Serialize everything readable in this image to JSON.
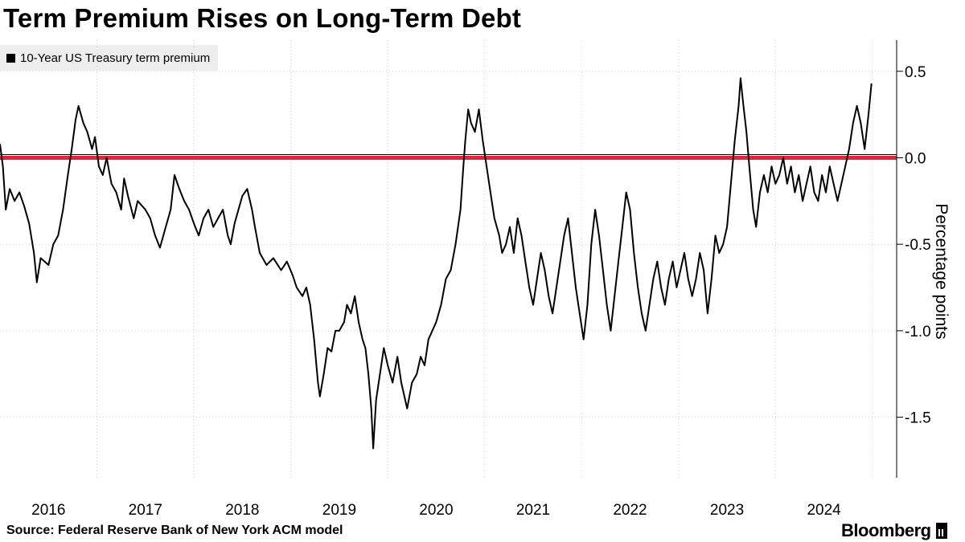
{
  "chart_data": {
    "type": "line",
    "title": "Term Premium Rises on Long-Term Debt",
    "legend": [
      "10-Year US Treasury term premium"
    ],
    "ylabel": "Percentage points",
    "xlabel": "",
    "ylim": [
      -1.85,
      0.68
    ],
    "xlim": [
      2015.5,
      2024.75
    ],
    "x_ticks": [
      2016,
      2017,
      2018,
      2019,
      2020,
      2021,
      2022,
      2023,
      2024
    ],
    "y_ticks": [
      0.5,
      0.0,
      -0.5,
      -1.0,
      -1.5
    ],
    "y_tick_labels": [
      "0.5",
      "0.0",
      "-0.5",
      "-1.0",
      "-1.5"
    ],
    "reference_line": {
      "y": 0,
      "color": "#e5243b"
    },
    "series": [
      {
        "name": "10-Year US Treasury term premium",
        "color": "#000000",
        "points": [
          [
            2015.5,
            0.08
          ],
          [
            2015.53,
            -0.05
          ],
          [
            2015.56,
            -0.3
          ],
          [
            2015.6,
            -0.18
          ],
          [
            2015.65,
            -0.25
          ],
          [
            2015.7,
            -0.2
          ],
          [
            2015.75,
            -0.28
          ],
          [
            2015.8,
            -0.38
          ],
          [
            2015.85,
            -0.55
          ],
          [
            2015.88,
            -0.72
          ],
          [
            2015.92,
            -0.58
          ],
          [
            2016.0,
            -0.62
          ],
          [
            2016.05,
            -0.5
          ],
          [
            2016.1,
            -0.45
          ],
          [
            2016.15,
            -0.3
          ],
          [
            2016.2,
            -0.1
          ],
          [
            2016.24,
            0.05
          ],
          [
            2016.28,
            0.22
          ],
          [
            2016.31,
            0.3
          ],
          [
            2016.36,
            0.2
          ],
          [
            2016.4,
            0.15
          ],
          [
            2016.45,
            0.05
          ],
          [
            2016.48,
            0.12
          ],
          [
            2016.52,
            -0.05
          ],
          [
            2016.56,
            -0.1
          ],
          [
            2016.6,
            0.0
          ],
          [
            2016.65,
            -0.15
          ],
          [
            2016.7,
            -0.2
          ],
          [
            2016.75,
            -0.3
          ],
          [
            2016.78,
            -0.12
          ],
          [
            2016.82,
            -0.22
          ],
          [
            2016.88,
            -0.35
          ],
          [
            2016.92,
            -0.25
          ],
          [
            2017.0,
            -0.3
          ],
          [
            2017.05,
            -0.35
          ],
          [
            2017.1,
            -0.45
          ],
          [
            2017.15,
            -0.52
          ],
          [
            2017.2,
            -0.42
          ],
          [
            2017.26,
            -0.3
          ],
          [
            2017.3,
            -0.1
          ],
          [
            2017.35,
            -0.18
          ],
          [
            2017.4,
            -0.25
          ],
          [
            2017.45,
            -0.3
          ],
          [
            2017.5,
            -0.38
          ],
          [
            2017.55,
            -0.45
          ],
          [
            2017.6,
            -0.35
          ],
          [
            2017.65,
            -0.3
          ],
          [
            2017.7,
            -0.4
          ],
          [
            2017.75,
            -0.35
          ],
          [
            2017.8,
            -0.3
          ],
          [
            2017.85,
            -0.45
          ],
          [
            2017.88,
            -0.5
          ],
          [
            2017.92,
            -0.38
          ],
          [
            2017.96,
            -0.3
          ],
          [
            2018.0,
            -0.22
          ],
          [
            2018.05,
            -0.18
          ],
          [
            2018.1,
            -0.3
          ],
          [
            2018.13,
            -0.4
          ],
          [
            2018.18,
            -0.55
          ],
          [
            2018.25,
            -0.62
          ],
          [
            2018.32,
            -0.58
          ],
          [
            2018.4,
            -0.65
          ],
          [
            2018.46,
            -0.6
          ],
          [
            2018.52,
            -0.68
          ],
          [
            2018.56,
            -0.75
          ],
          [
            2018.62,
            -0.8
          ],
          [
            2018.66,
            -0.75
          ],
          [
            2018.7,
            -0.85
          ],
          [
            2018.74,
            -1.05
          ],
          [
            2018.78,
            -1.3
          ],
          [
            2018.8,
            -1.38
          ],
          [
            2018.84,
            -1.25
          ],
          [
            2018.88,
            -1.1
          ],
          [
            2018.92,
            -1.12
          ],
          [
            2018.96,
            -1.0
          ],
          [
            2019.0,
            -1.0
          ],
          [
            2019.05,
            -0.95
          ],
          [
            2019.08,
            -0.85
          ],
          [
            2019.12,
            -0.9
          ],
          [
            2019.16,
            -0.8
          ],
          [
            2019.2,
            -0.95
          ],
          [
            2019.24,
            -1.05
          ],
          [
            2019.27,
            -1.1
          ],
          [
            2019.3,
            -1.25
          ],
          [
            2019.33,
            -1.45
          ],
          [
            2019.35,
            -1.68
          ],
          [
            2019.38,
            -1.4
          ],
          [
            2019.42,
            -1.25
          ],
          [
            2019.46,
            -1.1
          ],
          [
            2019.5,
            -1.2
          ],
          [
            2019.55,
            -1.3
          ],
          [
            2019.6,
            -1.15
          ],
          [
            2019.64,
            -1.3
          ],
          [
            2019.68,
            -1.4
          ],
          [
            2019.7,
            -1.45
          ],
          [
            2019.75,
            -1.3
          ],
          [
            2019.8,
            -1.25
          ],
          [
            2019.84,
            -1.15
          ],
          [
            2019.88,
            -1.2
          ],
          [
            2019.92,
            -1.05
          ],
          [
            2019.96,
            -1.0
          ],
          [
            2020.0,
            -0.95
          ],
          [
            2020.05,
            -0.85
          ],
          [
            2020.1,
            -0.7
          ],
          [
            2020.15,
            -0.65
          ],
          [
            2020.2,
            -0.5
          ],
          [
            2020.25,
            -0.3
          ],
          [
            2020.28,
            -0.05
          ],
          [
            2020.3,
            0.1
          ],
          [
            2020.33,
            0.28
          ],
          [
            2020.36,
            0.2
          ],
          [
            2020.4,
            0.15
          ],
          [
            2020.44,
            0.28
          ],
          [
            2020.48,
            0.1
          ],
          [
            2020.52,
            -0.05
          ],
          [
            2020.56,
            -0.2
          ],
          [
            2020.6,
            -0.35
          ],
          [
            2020.65,
            -0.45
          ],
          [
            2020.68,
            -0.55
          ],
          [
            2020.72,
            -0.5
          ],
          [
            2020.76,
            -0.4
          ],
          [
            2020.8,
            -0.55
          ],
          [
            2020.84,
            -0.35
          ],
          [
            2020.88,
            -0.45
          ],
          [
            2020.92,
            -0.6
          ],
          [
            2020.96,
            -0.75
          ],
          [
            2021.0,
            -0.85
          ],
          [
            2021.04,
            -0.7
          ],
          [
            2021.08,
            -0.55
          ],
          [
            2021.12,
            -0.65
          ],
          [
            2021.16,
            -0.8
          ],
          [
            2021.2,
            -0.9
          ],
          [
            2021.24,
            -0.75
          ],
          [
            2021.28,
            -0.6
          ],
          [
            2021.32,
            -0.45
          ],
          [
            2021.36,
            -0.35
          ],
          [
            2021.4,
            -0.55
          ],
          [
            2021.44,
            -0.75
          ],
          [
            2021.48,
            -0.9
          ],
          [
            2021.52,
            -1.05
          ],
          [
            2021.56,
            -0.85
          ],
          [
            2021.6,
            -0.5
          ],
          [
            2021.64,
            -0.3
          ],
          [
            2021.68,
            -0.45
          ],
          [
            2021.72,
            -0.65
          ],
          [
            2021.76,
            -0.85
          ],
          [
            2021.8,
            -1.0
          ],
          [
            2021.84,
            -0.8
          ],
          [
            2021.88,
            -0.6
          ],
          [
            2021.92,
            -0.4
          ],
          [
            2021.96,
            -0.2
          ],
          [
            2022.0,
            -0.3
          ],
          [
            2022.04,
            -0.55
          ],
          [
            2022.08,
            -0.75
          ],
          [
            2022.12,
            -0.9
          ],
          [
            2022.16,
            -1.0
          ],
          [
            2022.2,
            -0.85
          ],
          [
            2022.24,
            -0.7
          ],
          [
            2022.28,
            -0.6
          ],
          [
            2022.32,
            -0.75
          ],
          [
            2022.36,
            -0.85
          ],
          [
            2022.4,
            -0.7
          ],
          [
            2022.44,
            -0.6
          ],
          [
            2022.48,
            -0.75
          ],
          [
            2022.52,
            -0.65
          ],
          [
            2022.56,
            -0.55
          ],
          [
            2022.6,
            -0.7
          ],
          [
            2022.64,
            -0.8
          ],
          [
            2022.68,
            -0.7
          ],
          [
            2022.72,
            -0.55
          ],
          [
            2022.76,
            -0.65
          ],
          [
            2022.8,
            -0.9
          ],
          [
            2022.84,
            -0.7
          ],
          [
            2022.88,
            -0.45
          ],
          [
            2022.92,
            -0.55
          ],
          [
            2022.96,
            -0.5
          ],
          [
            2023.0,
            -0.4
          ],
          [
            2023.04,
            -0.15
          ],
          [
            2023.08,
            0.1
          ],
          [
            2023.12,
            0.3
          ],
          [
            2023.14,
            0.46
          ],
          [
            2023.17,
            0.3
          ],
          [
            2023.2,
            0.15
          ],
          [
            2023.23,
            -0.05
          ],
          [
            2023.27,
            -0.3
          ],
          [
            2023.3,
            -0.4
          ],
          [
            2023.34,
            -0.2
          ],
          [
            2023.38,
            -0.1
          ],
          [
            2023.42,
            -0.2
          ],
          [
            2023.46,
            -0.05
          ],
          [
            2023.5,
            -0.15
          ],
          [
            2023.54,
            -0.1
          ],
          [
            2023.58,
            0.0
          ],
          [
            2023.62,
            -0.15
          ],
          [
            2023.66,
            -0.05
          ],
          [
            2023.7,
            -0.2
          ],
          [
            2023.74,
            -0.1
          ],
          [
            2023.78,
            -0.25
          ],
          [
            2023.82,
            -0.15
          ],
          [
            2023.86,
            -0.05
          ],
          [
            2023.9,
            -0.2
          ],
          [
            2023.94,
            -0.25
          ],
          [
            2023.98,
            -0.1
          ],
          [
            2024.02,
            -0.2
          ],
          [
            2024.06,
            -0.05
          ],
          [
            2024.1,
            -0.15
          ],
          [
            2024.14,
            -0.25
          ],
          [
            2024.18,
            -0.15
          ],
          [
            2024.22,
            -0.05
          ],
          [
            2024.26,
            0.05
          ],
          [
            2024.3,
            0.2
          ],
          [
            2024.34,
            0.3
          ],
          [
            2024.38,
            0.2
          ],
          [
            2024.42,
            0.05
          ],
          [
            2024.46,
            0.25
          ],
          [
            2024.49,
            0.43
          ]
        ]
      }
    ]
  },
  "footer": {
    "source": "Source: Federal Reserve Bank of New York ACM model",
    "brand": "Bloomberg"
  }
}
